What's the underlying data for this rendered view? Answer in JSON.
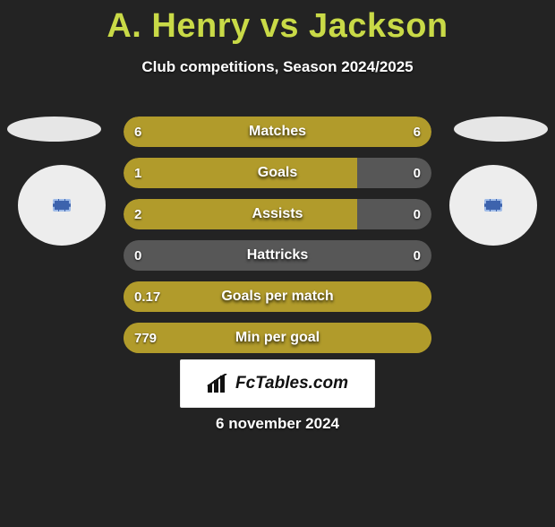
{
  "title_color": "#c9da47",
  "background_color": "#232323",
  "bar_bg_default": "#2f2f2f",
  "date_text": "6 november 2024",
  "brand_text": "FcTables.com",
  "player_left": "A. Henry",
  "player_right": "Jackson",
  "vs_text": "vs",
  "subtitle": "Club competitions, Season 2024/2025",
  "color_left": "#b19b2b",
  "color_right": "#b19b2b",
  "neutral_bar_color": "#575757",
  "stats": [
    {
      "label": "Matches",
      "left_value": "6",
      "right_value": "6",
      "type": "split",
      "left_pct": 50,
      "right_pct": 50,
      "left_color": "#b19b2b",
      "right_color": "#b19b2b",
      "bar_bg": "#2f2f2f"
    },
    {
      "label": "Goals",
      "left_value": "1",
      "right_value": "0",
      "type": "split",
      "left_pct": 76,
      "right_pct": 24,
      "left_color": "#b19b2b",
      "right_color": "#575757",
      "bar_bg": "#2f2f2f"
    },
    {
      "label": "Assists",
      "left_value": "2",
      "right_value": "0",
      "type": "split",
      "left_pct": 76,
      "right_pct": 24,
      "left_color": "#b19b2b",
      "right_color": "#575757",
      "bar_bg": "#2f2f2f"
    },
    {
      "label": "Hattricks",
      "left_value": "0",
      "right_value": "0",
      "type": "split",
      "left_pct": 0,
      "right_pct": 0,
      "left_color": "#575757",
      "right_color": "#575757",
      "bar_bg": "#575757"
    },
    {
      "label": "Goals per match",
      "left_value": "0.17",
      "right_value": "",
      "type": "full",
      "full_pct": 100,
      "full_color": "#b19b2b",
      "bar_bg": "#b19b2b"
    },
    {
      "label": "Min per goal",
      "left_value": "779",
      "right_value": "",
      "type": "full",
      "full_pct": 100,
      "full_color": "#b19b2b",
      "bar_bg": "#b19b2b"
    }
  ]
}
